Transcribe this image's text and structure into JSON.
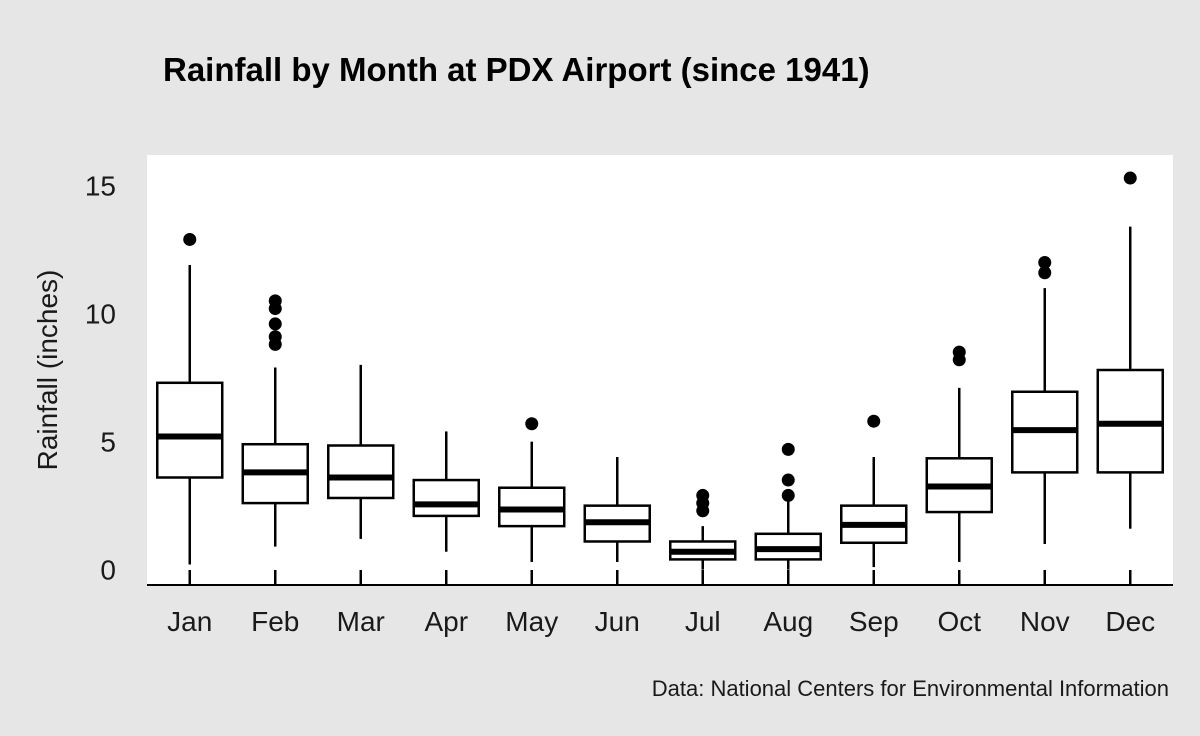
{
  "chart_data": {
    "type": "boxplot",
    "title": "Rainfall by Month at PDX Airport (since 1941)",
    "ylabel": "Rainfall (inches)",
    "xlabel": "",
    "caption": "Data: National Centers for Environmental Information",
    "ylim": [
      -0.6,
      16.2
    ],
    "yticks": [
      0,
      5,
      10,
      15
    ],
    "grid": false,
    "legend": "none",
    "colors": {
      "background": "#e6e6e6",
      "panel": "#ffffff",
      "ink": "#000000"
    },
    "categories": [
      "Jan",
      "Feb",
      "Mar",
      "Apr",
      "May",
      "Jun",
      "Jul",
      "Aug",
      "Sep",
      "Oct",
      "Nov",
      "Dec"
    ],
    "boxes": [
      {
        "whisker_low": 0.2,
        "q1": 3.6,
        "median": 5.2,
        "q3": 7.3,
        "whisker_high": 11.9,
        "outliers": [
          12.9
        ]
      },
      {
        "whisker_low": 0.9,
        "q1": 2.6,
        "median": 3.8,
        "q3": 4.9,
        "whisker_high": 7.9,
        "outliers": [
          8.8,
          9.1,
          9.6,
          10.2,
          10.5
        ]
      },
      {
        "whisker_low": 1.2,
        "q1": 2.8,
        "median": 3.6,
        "q3": 4.85,
        "whisker_high": 8.0,
        "outliers": []
      },
      {
        "whisker_low": 0.7,
        "q1": 2.1,
        "median": 2.55,
        "q3": 3.5,
        "whisker_high": 5.4,
        "outliers": []
      },
      {
        "whisker_low": 0.3,
        "q1": 1.7,
        "median": 2.35,
        "q3": 3.2,
        "whisker_high": 5.0,
        "outliers": [
          5.7
        ]
      },
      {
        "whisker_low": 0.3,
        "q1": 1.1,
        "median": 1.85,
        "q3": 2.5,
        "whisker_high": 4.4,
        "outliers": []
      },
      {
        "whisker_low": 0.0,
        "q1": 0.4,
        "median": 0.7,
        "q3": 1.1,
        "whisker_high": 1.7,
        "outliers": [
          2.3,
          2.6,
          2.9
        ]
      },
      {
        "whisker_low": 0.0,
        "q1": 0.4,
        "median": 0.8,
        "q3": 1.4,
        "whisker_high": 2.8,
        "outliers": [
          2.9,
          3.5,
          4.7
        ]
      },
      {
        "whisker_low": 0.1,
        "q1": 1.05,
        "median": 1.75,
        "q3": 2.5,
        "whisker_high": 4.4,
        "outliers": [
          5.8
        ]
      },
      {
        "whisker_low": 0.3,
        "q1": 2.25,
        "median": 3.25,
        "q3": 4.35,
        "whisker_high": 7.1,
        "outliers": [
          8.2,
          8.5
        ]
      },
      {
        "whisker_low": 1.0,
        "q1": 3.8,
        "median": 5.45,
        "q3": 6.95,
        "whisker_high": 11.0,
        "outliers": [
          11.6,
          12.0
        ]
      },
      {
        "whisker_low": 1.6,
        "q1": 3.8,
        "median": 5.7,
        "q3": 7.8,
        "whisker_high": 13.4,
        "outliers": [
          15.3
        ]
      }
    ]
  }
}
